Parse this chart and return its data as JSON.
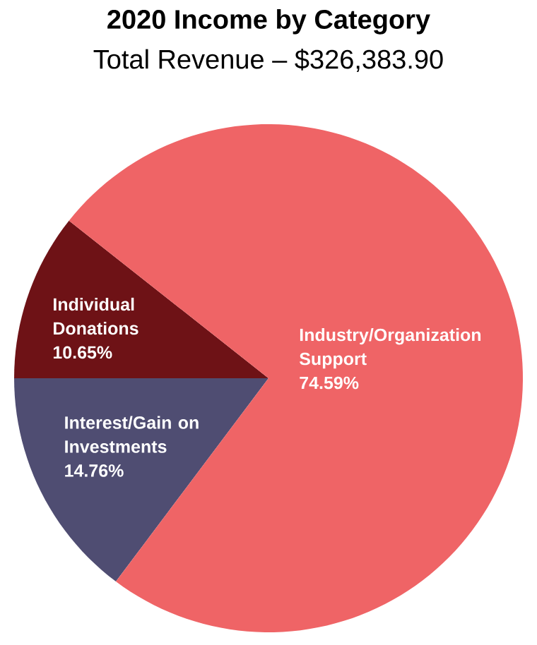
{
  "chart_data": {
    "type": "pie",
    "title": "2020 Income by Category",
    "subtitle": "Total Revenue – $326,383.90",
    "categories": [
      "Individual Donations",
      "Interest/Gain on Investments",
      "Industry/Organization Support"
    ],
    "values": [
      10.65,
      14.76,
      74.59
    ],
    "colors": [
      "#6e1216",
      "#4f4d72",
      "#ef6466"
    ],
    "value_labels": [
      "10.65%",
      "14.76%",
      "74.59%"
    ],
    "data_labels": true
  }
}
